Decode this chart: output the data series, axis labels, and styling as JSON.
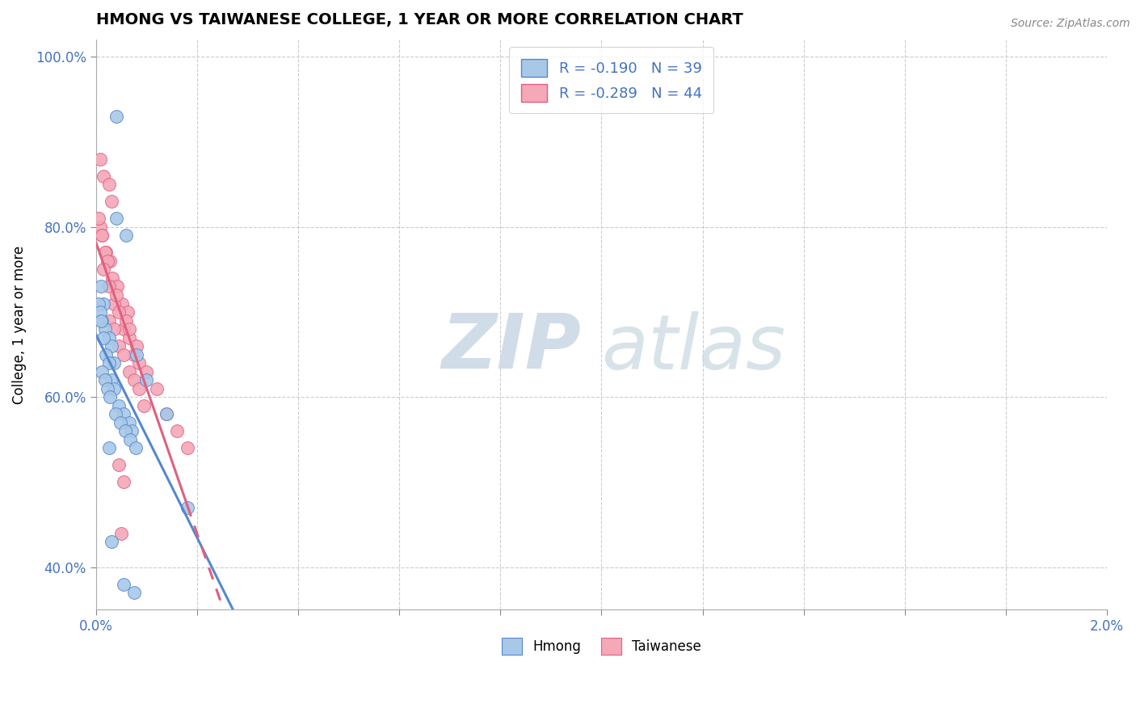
{
  "title": "HMONG VS TAIWANESE COLLEGE, 1 YEAR OR MORE CORRELATION CHART",
  "source": "Source: ZipAtlas.com",
  "ylabel_label": "College, 1 year or more",
  "R_hmong": -0.19,
  "N_hmong": 39,
  "R_taiwanese": -0.289,
  "N_taiwanese": 44,
  "xlim": [
    0.0,
    0.02
  ],
  "ylim": [
    0.35,
    1.02
  ],
  "hmong_color": "#a8c8e8",
  "taiwanese_color": "#f4a8b8",
  "trend_hmong_color": "#5588cc",
  "trend_taiwanese_color": "#e06080",
  "hmong_x": [
    0.0004,
    0.0001,
    0.00015,
    0.00012,
    0.00018,
    0.00025,
    0.0003,
    0.00035,
    5e-05,
    8e-05,
    0.0001,
    0.00015,
    0.0002,
    0.00025,
    0.0003,
    0.00035,
    0.00045,
    0.00055,
    0.00065,
    0.0007,
    0.00012,
    0.00018,
    0.00022,
    0.00028,
    0.00038,
    0.00048,
    0.00058,
    0.00068,
    0.00078,
    0.0004,
    0.0006,
    0.0008,
    0.001,
    0.0014,
    0.0018,
    0.0003,
    0.00055,
    0.00075,
    0.00025
  ],
  "hmong_y": [
    0.93,
    0.73,
    0.71,
    0.69,
    0.68,
    0.67,
    0.66,
    0.64,
    0.71,
    0.7,
    0.69,
    0.67,
    0.65,
    0.64,
    0.62,
    0.61,
    0.59,
    0.58,
    0.57,
    0.56,
    0.63,
    0.62,
    0.61,
    0.6,
    0.58,
    0.57,
    0.56,
    0.55,
    0.54,
    0.81,
    0.79,
    0.65,
    0.62,
    0.58,
    0.47,
    0.43,
    0.38,
    0.37,
    0.54
  ],
  "taiwanese_x": [
    8e-05,
    0.00015,
    0.00025,
    0.0003,
    8e-05,
    0.00012,
    0.0002,
    0.00028,
    5e-05,
    0.00012,
    0.00018,
    0.00022,
    0.00032,
    0.00042,
    0.00052,
    0.00062,
    0.00015,
    0.00025,
    0.00035,
    0.00045,
    0.00055,
    0.00065,
    0.00075,
    0.00085,
    0.00025,
    0.00035,
    0.00045,
    0.00055,
    0.00065,
    0.00075,
    0.00085,
    0.00095,
    0.0004,
    0.0006,
    0.0008,
    0.001,
    0.0012,
    0.0014,
    0.0016,
    0.0018,
    0.00045,
    0.00055,
    0.00065,
    0.0005
  ],
  "taiwanese_y": [
    0.88,
    0.86,
    0.85,
    0.83,
    0.8,
    0.79,
    0.77,
    0.76,
    0.81,
    0.79,
    0.77,
    0.76,
    0.74,
    0.73,
    0.71,
    0.7,
    0.75,
    0.73,
    0.71,
    0.7,
    0.68,
    0.67,
    0.65,
    0.64,
    0.69,
    0.68,
    0.66,
    0.65,
    0.63,
    0.62,
    0.61,
    0.59,
    0.72,
    0.69,
    0.66,
    0.63,
    0.61,
    0.58,
    0.56,
    0.54,
    0.52,
    0.5,
    0.68,
    0.44
  ],
  "legend_R_text": "R = ",
  "legend_N_text": "N = ",
  "watermark_ZIP": "ZIP",
  "watermark_atlas": "atlas"
}
